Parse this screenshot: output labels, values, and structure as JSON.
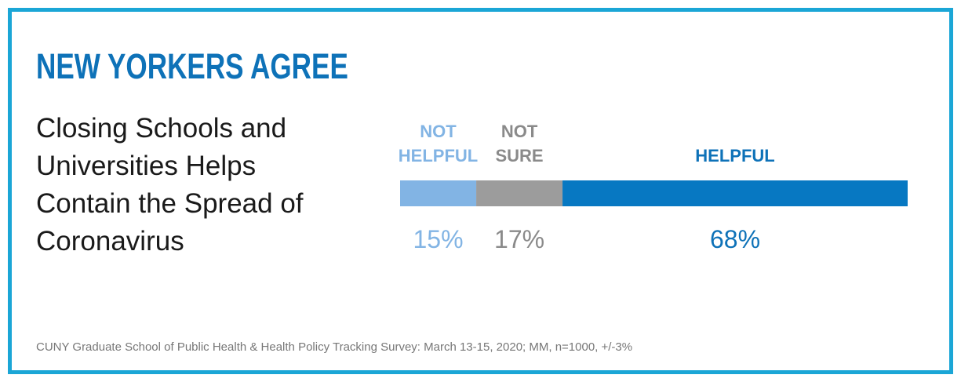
{
  "headline": "NEW YORKERS AGREE",
  "source": "CUNY Graduate School of Public Health & Health Policy Tracking Survey: March 13-15, 2020; MM, n=1000, +/-3%",
  "chart_data": {
    "type": "bar",
    "orientation": "horizontal-stacked",
    "title": "Closing Schools and Universities Helps Contain the Spread of Coronavirus",
    "unit": "%",
    "categories": [
      {
        "label_lines": [
          "NOT",
          "HELPFUL"
        ],
        "value": 15,
        "value_label": "15%",
        "color": "#82b4e4",
        "label_color": "#82b4e4"
      },
      {
        "label_lines": [
          "NOT",
          "SURE"
        ],
        "value": 17,
        "value_label": "17%",
        "color": "#9c9c9c",
        "label_color": "#8a8a8a"
      },
      {
        "label_lines": [
          "HELPFUL"
        ],
        "value": 68,
        "value_label": "68%",
        "color": "#0778c2",
        "label_color": "#0e72b8"
      }
    ],
    "total": 100,
    "legend": "none",
    "grid": false
  }
}
